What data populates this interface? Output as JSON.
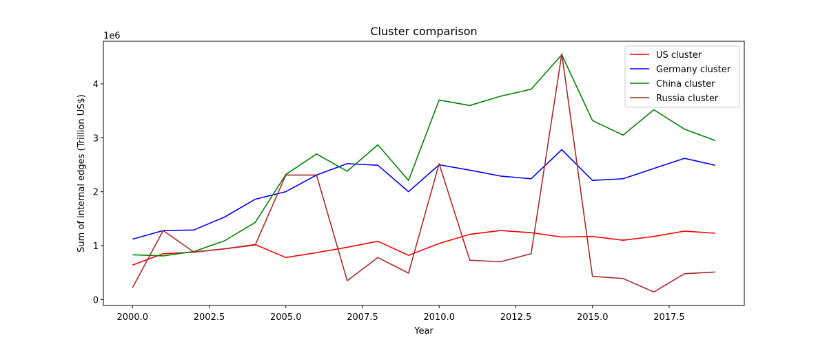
{
  "chart_data": {
    "type": "line",
    "title": "Cluster comparison",
    "xlabel": "Year",
    "ylabel": "Sum of internal edges (Trillion US$)",
    "y_offset_label": "1e6",
    "xlim": [
      1999.05,
      2019.95
    ],
    "ylim": [
      -0.11,
      4.79
    ],
    "x_ticks": [
      2000,
      2002.5,
      2005,
      2007.5,
      2010,
      2012.5,
      2015,
      2017.5
    ],
    "x_tick_labels": [
      "2000.0",
      "2002.5",
      "2005.0",
      "2007.5",
      "2010.0",
      "2012.5",
      "2015.0",
      "2017.5"
    ],
    "y_ticks": [
      0,
      1,
      2,
      3,
      4
    ],
    "y_tick_labels": [
      "0",
      "1",
      "2",
      "3",
      "4"
    ],
    "grid": false,
    "legend_position": "top-right",
    "x": [
      2000,
      2001,
      2002,
      2003,
      2004,
      2005,
      2006,
      2007,
      2008,
      2009,
      2010,
      2011,
      2012,
      2013,
      2014,
      2015,
      2016,
      2017,
      2018,
      2019
    ],
    "series": [
      {
        "name": "US cluster",
        "color": "#ff0000",
        "values": [
          0.64,
          0.85,
          0.88,
          0.94,
          1.02,
          0.78,
          0.87,
          0.97,
          1.08,
          0.82,
          1.04,
          1.21,
          1.28,
          1.24,
          1.16,
          1.17,
          1.1,
          1.17,
          1.27,
          1.23
        ]
      },
      {
        "name": "Germany cluster",
        "color": "#0000ee",
        "values": [
          1.12,
          1.28,
          1.29,
          1.53,
          1.86,
          2.0,
          2.31,
          2.52,
          2.49,
          2.0,
          2.5,
          2.4,
          2.29,
          2.24,
          2.78,
          2.21,
          2.24,
          2.43,
          2.62,
          2.49
        ]
      },
      {
        "name": "China cluster",
        "color": "#008000",
        "values": [
          0.83,
          0.81,
          0.89,
          1.09,
          1.43,
          2.32,
          2.7,
          2.38,
          2.87,
          2.21,
          3.7,
          3.6,
          3.77,
          3.9,
          4.54,
          3.32,
          3.05,
          3.52,
          3.16,
          2.95
        ]
      },
      {
        "name": "Russia cluster",
        "color": "#a52a2a",
        "values": [
          0.22,
          1.28,
          0.88,
          0.94,
          1.01,
          2.31,
          2.31,
          0.35,
          0.78,
          0.49,
          2.52,
          0.73,
          0.7,
          0.85,
          4.56,
          0.43,
          0.39,
          0.14,
          0.48,
          0.51
        ]
      }
    ]
  }
}
